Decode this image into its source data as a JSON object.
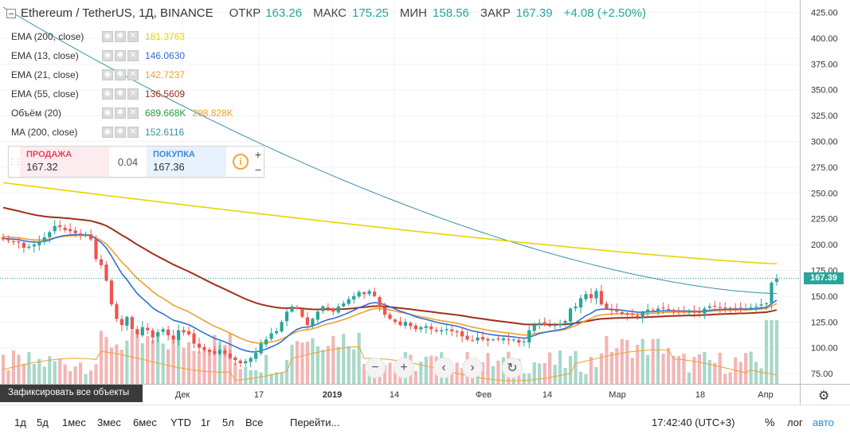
{
  "header": {
    "title": "Ethereum / TetherUS, 1Д, BINANCE",
    "open_label": "ОТКР",
    "open": "163.26",
    "high_label": "МАКС",
    "high": "175.25",
    "low_label": "МИН",
    "low": "158.56",
    "close_label": "ЗАКР",
    "close": "167.39",
    "change": "+4.08 (+2.50%)"
  },
  "indicators": [
    {
      "name": "EMA (200, close)",
      "value": "181.3763",
      "color": "#e8d400"
    },
    {
      "name": "EMA (13, close)",
      "value": "146.0630",
      "color": "#2f6fd8"
    },
    {
      "name": "EMA (21, close)",
      "value": "142.7237",
      "color": "#f0a030"
    },
    {
      "name": "EMA (55, close)",
      "value": "136.5609",
      "color": "#a0301a"
    },
    {
      "name": "Объём (20)",
      "value": "689.668K",
      "value2": "298.828K",
      "color": "#26a040",
      "color2": "#f0a030"
    },
    {
      "name": "MA (200, close)",
      "value": "152.6116",
      "color": "#3a90a8"
    }
  ],
  "trade": {
    "sell_label": "ПРОДАЖА",
    "sell_price": "167.32",
    "spread": "0.04",
    "buy_label": "ПОКУПКА",
    "buy_price": "167.36",
    "info": "i",
    "plus": "+",
    "minus": "−"
  },
  "tooltip": "Зафиксировать все объекты",
  "bottom": {
    "timeframes": [
      "1д",
      "5д",
      "1мес",
      "3мес",
      "6мес",
      "YTD",
      "1г",
      "5л",
      "Все"
    ],
    "goto": "Перейти...",
    "clock": "17:42:40 (UTC+3)",
    "percent": "%",
    "log": "лог",
    "auto": "авто"
  },
  "colors": {
    "up": "#26a69a",
    "down": "#ef5350",
    "up_volume": "#a7d8c8",
    "down_volume": "#f2b6b5",
    "price_tag": "#26a69a",
    "accent": "#2a8ad8"
  },
  "icons": {
    "settings": "gear-icon",
    "collapse": "collapse-icon",
    "zoom_out": "minus-icon",
    "zoom_in": "plus-icon",
    "back": "chevron-left-icon",
    "forward": "chevron-right-icon",
    "reset": "reset-icon"
  },
  "chart_data": {
    "type": "candlestick",
    "symbol": "Ethereum / TetherUS",
    "interval": "1Д",
    "exchange": "BINANCE",
    "y_axis": {
      "ticks": [
        75,
        100,
        125,
        150,
        175,
        200,
        225,
        250,
        275,
        300,
        325,
        350,
        375,
        400,
        425
      ],
      "range": [
        65,
        437
      ],
      "position": "right"
    },
    "x_axis": {
      "ticks": [
        "Дек",
        "17",
        "2019",
        "14",
        "Фев",
        "14",
        "Мар",
        "18",
        "Апр"
      ]
    },
    "last_price": 167.39,
    "grid": true,
    "closes": [
      205,
      204,
      203,
      202,
      197,
      198,
      200,
      203,
      207,
      212,
      218,
      217,
      214,
      213,
      211,
      209,
      210,
      205,
      186,
      180,
      165,
      142,
      128,
      122,
      130,
      118,
      113,
      120,
      117,
      110,
      115,
      118,
      112,
      108,
      117,
      115,
      113,
      104,
      100,
      98,
      96,
      94,
      98,
      94,
      90,
      88,
      85,
      87,
      90,
      95,
      104,
      108,
      114,
      116,
      125,
      135,
      140,
      138,
      130,
      122,
      128,
      135,
      140,
      138,
      135,
      140,
      143,
      147,
      150,
      154,
      152,
      155,
      150,
      140,
      132,
      128,
      125,
      122,
      125,
      121,
      118,
      120,
      121,
      118,
      116,
      117,
      118,
      116,
      115,
      111,
      108,
      107,
      110,
      108,
      107,
      108,
      108,
      109,
      108,
      108,
      105,
      106,
      117,
      122,
      124,
      122,
      121,
      122,
      123,
      126,
      138,
      140,
      148,
      152,
      148,
      155,
      142,
      138,
      136,
      135,
      133,
      132,
      132,
      130,
      134,
      137,
      136,
      138,
      138,
      137,
      135,
      135,
      135,
      136,
      134,
      134,
      138,
      140,
      140,
      139,
      138,
      138,
      138,
      138,
      137,
      139,
      140,
      142,
      143,
      163,
      167
    ],
    "series": [
      {
        "name": "EMA (200, close)",
        "start": 260,
        "end": 181.38
      },
      {
        "name": "MA (200, close)",
        "start": 430,
        "end": 152.61
      },
      {
        "name": "EMA (13, close)",
        "end": 146.06
      },
      {
        "name": "EMA (21, close)",
        "end": 142.72
      },
      {
        "name": "EMA (55, close)",
        "start": 237,
        "end": 136.56
      },
      {
        "name": "Объём (20)",
        "values": [
          "689.668K",
          "298.828K"
        ]
      }
    ]
  }
}
